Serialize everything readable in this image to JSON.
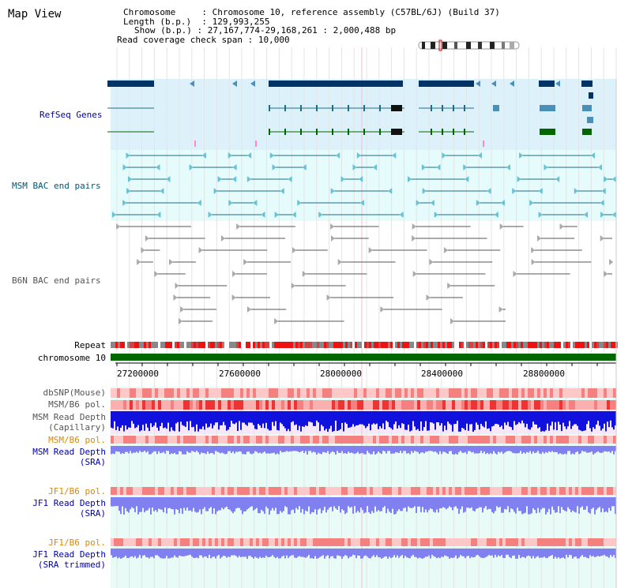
{
  "title": "Map View",
  "header": {
    "chromosome_label": "Chromosome",
    "chromosome_value": "Chromosome 10, reference assembly (C57BL/6J) (Build 37)",
    "length_label": "Length (b.p.)",
    "length_value": "129,993,255",
    "show_label": "Show (b.p.)",
    "show_value": "27,167,774-29,168,261 : 2,000,488 bp",
    "span_label": "Read coverage check span",
    "span_value": "10,000"
  },
  "tracks": {
    "refseq": "RefSeq Genes",
    "msm_bac": "MSM BAC end pairs",
    "b6n_bac": "B6N BAC end pairs",
    "repeat": "Repeat",
    "chromosome": "chromosome 10",
    "dbsnp": "dbSNP(Mouse)",
    "msm_b6_pol_1": "MSM/B6 pol.",
    "msm_read_depth_cap_1": "MSM Read Depth",
    "msm_read_depth_cap_2": "(Capillary)",
    "msm_b6_pol_2": "MSM/B6 pol.",
    "msm_read_depth_sra_1": "MSM Read Depth",
    "msm_read_depth_sra_2": "(SRA)",
    "jf1_b6_pol_1": "JF1/B6 pol.",
    "jf1_read_depth_sra_1": "JF1 Read Depth",
    "jf1_read_depth_sra_2": "(SRA)",
    "jf1_b6_pol_2": "JF1/B6 pol.",
    "jf1_read_depth_trim_1": "JF1 Read Depth",
    "jf1_read_depth_trim_2": "(SRA trimmed)"
  },
  "axis": {
    "ticks": [
      "27200000",
      "27600000",
      "28000000",
      "28400000",
      "28800000"
    ]
  },
  "colors": {
    "refseq_bg": "#ddf1fb",
    "msm_bg": "#e6fbfb",
    "lower_bg": "#e9fbf6",
    "gene_dark": "#003366",
    "gene_teal": "#4a8fb8",
    "gene_green": "#006600",
    "msm_line": "#1a6e8a",
    "msm_arrow": "#66c2d6",
    "b6n_line": "#555555",
    "b6n_arrow": "#aaaaaa",
    "pol_red": "#ee2222",
    "depth_blue": "#1111dd",
    "depth_light": "#8080f0",
    "label_blue": "#0000aa",
    "label_orange": "#dd8800",
    "label_teal": "#005577",
    "label_grey": "#555555"
  }
}
